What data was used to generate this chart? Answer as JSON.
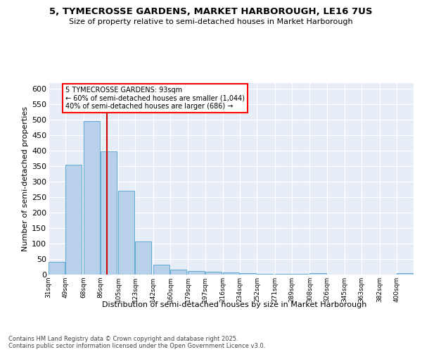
{
  "title1": "5, TYMECROSSE GARDENS, MARKET HARBOROUGH, LE16 7US",
  "title2": "Size of property relative to semi-detached houses in Market Harborough",
  "xlabel": "Distribution of semi-detached houses by size in Market Harborough",
  "ylabel": "Number of semi-detached properties",
  "footnote1": "Contains HM Land Registry data © Crown copyright and database right 2025.",
  "footnote2": "Contains public sector information licensed under the Open Government Licence v3.0.",
  "annotation_title": "5 TYMECROSSE GARDENS: 93sqm",
  "annotation_line1": "← 60% of semi-detached houses are smaller (1,044)",
  "annotation_line2": "40% of semi-detached houses are larger (686) →",
  "property_size": 93,
  "bin_labels": [
    "31sqm",
    "49sqm",
    "68sqm",
    "86sqm",
    "105sqm",
    "123sqm",
    "142sqm",
    "160sqm",
    "179sqm",
    "197sqm",
    "216sqm",
    "234sqm",
    "252sqm",
    "271sqm",
    "289sqm",
    "308sqm",
    "326sqm",
    "345sqm",
    "363sqm",
    "382sqm",
    "400sqm"
  ],
  "bin_lefts": [
    31,
    49,
    68,
    86,
    105,
    123,
    142,
    160,
    179,
    197,
    216,
    234,
    252,
    271,
    289,
    308,
    326,
    345,
    363,
    382,
    400
  ],
  "bin_width": 18,
  "bar_heights": [
    40,
    356,
    497,
    399,
    270,
    107,
    32,
    15,
    11,
    8,
    6,
    5,
    2,
    2,
    2,
    5,
    1,
    1,
    1,
    1,
    5
  ],
  "bar_color": "#b8d0ea",
  "bar_edge_color": "#6aaed6",
  "vline_color": "#cc0000",
  "bg_color": "#e8eef8",
  "grid_color": "#ffffff",
  "ylim_max": 620,
  "ytick_step": 50
}
